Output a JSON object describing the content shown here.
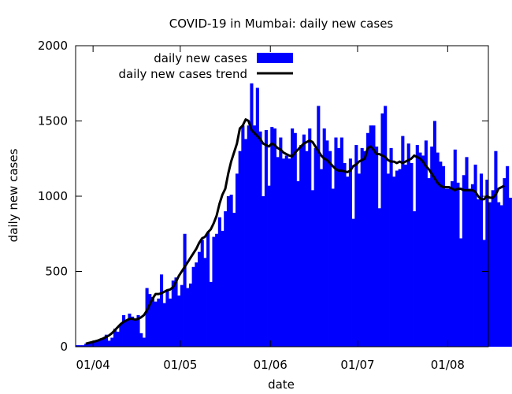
{
  "chart_data": {
    "type": "bar",
    "title": "COVID-19 in Mumbai: daily new cases",
    "xlabel": "date",
    "ylabel": "daily new cases",
    "ylim": [
      0,
      2000
    ],
    "xlim": [
      "2020-03-26",
      "2020-08-15"
    ],
    "yticks": [
      0,
      500,
      1000,
      1500,
      2000
    ],
    "xticks": [
      {
        "date": "2020-04-01",
        "label": "01/04"
      },
      {
        "date": "2020-05-01",
        "label": "01/05"
      },
      {
        "date": "2020-06-01",
        "label": "01/06"
      },
      {
        "date": "2020-07-01",
        "label": "01/07"
      },
      {
        "date": "2020-08-01",
        "label": "01/08"
      }
    ],
    "grid": false,
    "legend_position": "top-left",
    "bar_color": "#0000ff",
    "trend_color": "#000000",
    "start_date": "2020-03-26",
    "series": [
      {
        "name": "daily new cases",
        "style": "bar",
        "values": [
          10,
          10,
          10,
          20,
          30,
          30,
          40,
          40,
          50,
          60,
          80,
          40,
          60,
          120,
          100,
          150,
          210,
          170,
          220,
          200,
          180,
          210,
          90,
          60,
          390,
          350,
          330,
          300,
          320,
          480,
          290,
          370,
          320,
          440,
          460,
          340,
          410,
          750,
          390,
          420,
          530,
          560,
          630,
          710,
          590,
          760,
          430,
          730,
          750,
          860,
          770,
          900,
          1000,
          1010,
          890,
          1150,
          1300,
          1470,
          1380,
          1470,
          1750,
          1470,
          1720,
          1430,
          1000,
          1440,
          1070,
          1460,
          1450,
          1260,
          1390,
          1250,
          1270,
          1250,
          1450,
          1420,
          1100,
          1340,
          1410,
          1300,
          1450,
          1040,
          1320,
          1600,
          1180,
          1450,
          1370,
          1300,
          1050,
          1390,
          1320,
          1390,
          1220,
          1130,
          1250,
          850,
          1340,
          1150,
          1320,
          1300,
          1420,
          1470,
          1470,
          1330,
          920,
          1550,
          1600,
          1150,
          1320,
          1130,
          1170,
          1180,
          1400,
          1210,
          1350,
          1220,
          900,
          1340,
          1290,
          1270,
          1370,
          1120,
          1330,
          1500,
          1290,
          1230,
          1200,
          1050,
          1050,
          1100,
          1310,
          1090,
          720,
          1140,
          1260,
          1050,
          1080,
          1210,
          980,
          1150,
          710,
          1110,
          960,
          1040,
          1300,
          960,
          940,
          1120,
          1200,
          990
        ]
      },
      {
        "name": "daily new cases trend",
        "style": "line",
        "values": [
          null,
          null,
          null,
          20,
          25,
          30,
          35,
          40,
          48,
          55,
          65,
          75,
          90,
          110,
          130,
          150,
          165,
          175,
          185,
          185,
          180,
          185,
          195,
          210,
          240,
          280,
          320,
          350,
          350,
          355,
          365,
          375,
          380,
          395,
          430,
          470,
          500,
          530,
          560,
          590,
          620,
          650,
          690,
          720,
          730,
          760,
          780,
          820,
          870,
          950,
          1010,
          1050,
          1150,
          1230,
          1290,
          1350,
          1450,
          1470,
          1510,
          1500,
          1440,
          1420,
          1400,
          1380,
          1350,
          1340,
          1330,
          1350,
          1340,
          1320,
          1310,
          1290,
          1280,
          1270,
          1265,
          1290,
          1310,
          1330,
          1350,
          1360,
          1370,
          1360,
          1330,
          1300,
          1270,
          1250,
          1240,
          1220,
          1200,
          1180,
          1170,
          1170,
          1165,
          1160,
          1170,
          1200,
          1210,
          1230,
          1240,
          1250,
          1320,
          1330,
          1310,
          1280,
          1280,
          1270,
          1260,
          1240,
          1230,
          1230,
          1220,
          1230,
          1220,
          1230,
          1240,
          1250,
          1270,
          1260,
          1250,
          1230,
          1200,
          1180,
          1150,
          1120,
          1090,
          1070,
          1060,
          1060,
          1060,
          1050,
          1040,
          1050,
          1050,
          1040,
          1040,
          1040,
          1040,
          1030,
          1000,
          980,
          980,
          1000,
          990,
          990,
          1010,
          1050,
          1060,
          1070
        ]
      }
    ]
  }
}
